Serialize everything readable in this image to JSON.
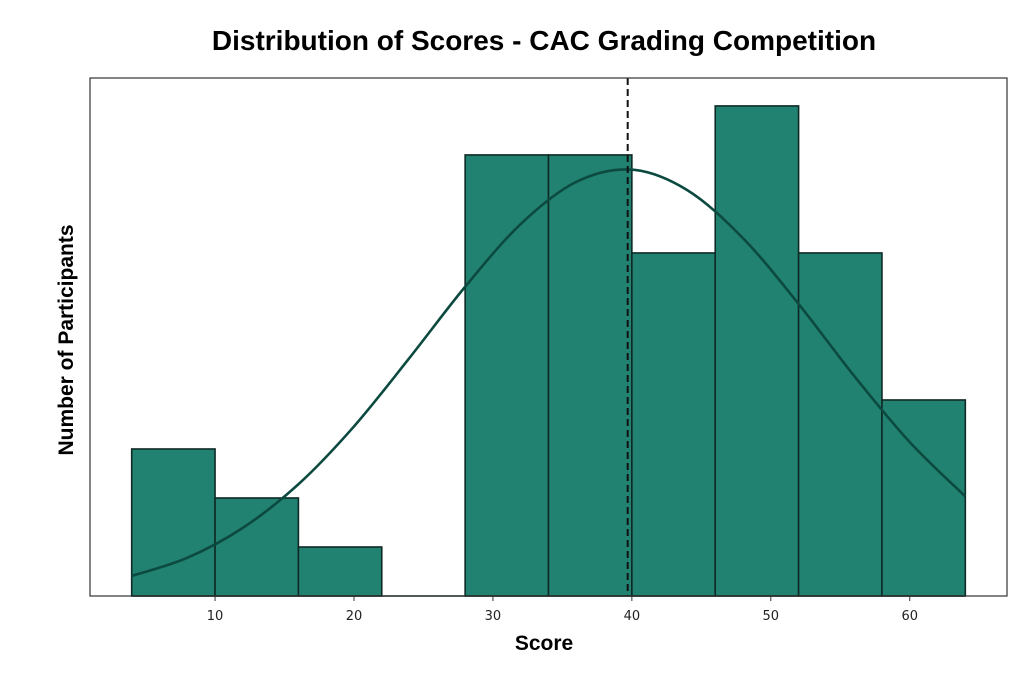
{
  "chart_data": {
    "type": "bar",
    "subtype": "histogram with kde overlay",
    "title": "Distribution of Scores - CAC Grading Competition",
    "xlabel": "Score",
    "ylabel": "Number of Participants",
    "xlim": [
      1,
      67
    ],
    "ylim": [
      0,
      10.57
    ],
    "xticks": [
      10,
      20,
      30,
      40,
      50,
      60
    ],
    "xtick_labels": [
      "10",
      "20",
      "30",
      "40",
      "50",
      "60"
    ],
    "yticks_shown": false,
    "grid": false,
    "bins": [
      4,
      10,
      16,
      22,
      28,
      34,
      40,
      46,
      52,
      58,
      64
    ],
    "counts": [
      3,
      2,
      1,
      0,
      9,
      9,
      7,
      10,
      7,
      4
    ],
    "mean_line": 39.7,
    "kde": {
      "x": [
        4,
        8,
        12,
        16,
        20,
        24,
        28,
        32,
        36,
        40,
        44,
        48,
        52,
        56,
        60,
        64
      ],
      "y": [
        0.41,
        0.78,
        1.39,
        2.28,
        3.46,
        4.86,
        6.31,
        7.59,
        8.45,
        8.7,
        8.28,
        7.3,
        5.96,
        4.49,
        3.14,
        2.03
      ]
    },
    "colors": {
      "bar": "#218272",
      "bar_edge": "#0f2a25",
      "kde": "#0c4a40",
      "mean": "#111111"
    }
  }
}
